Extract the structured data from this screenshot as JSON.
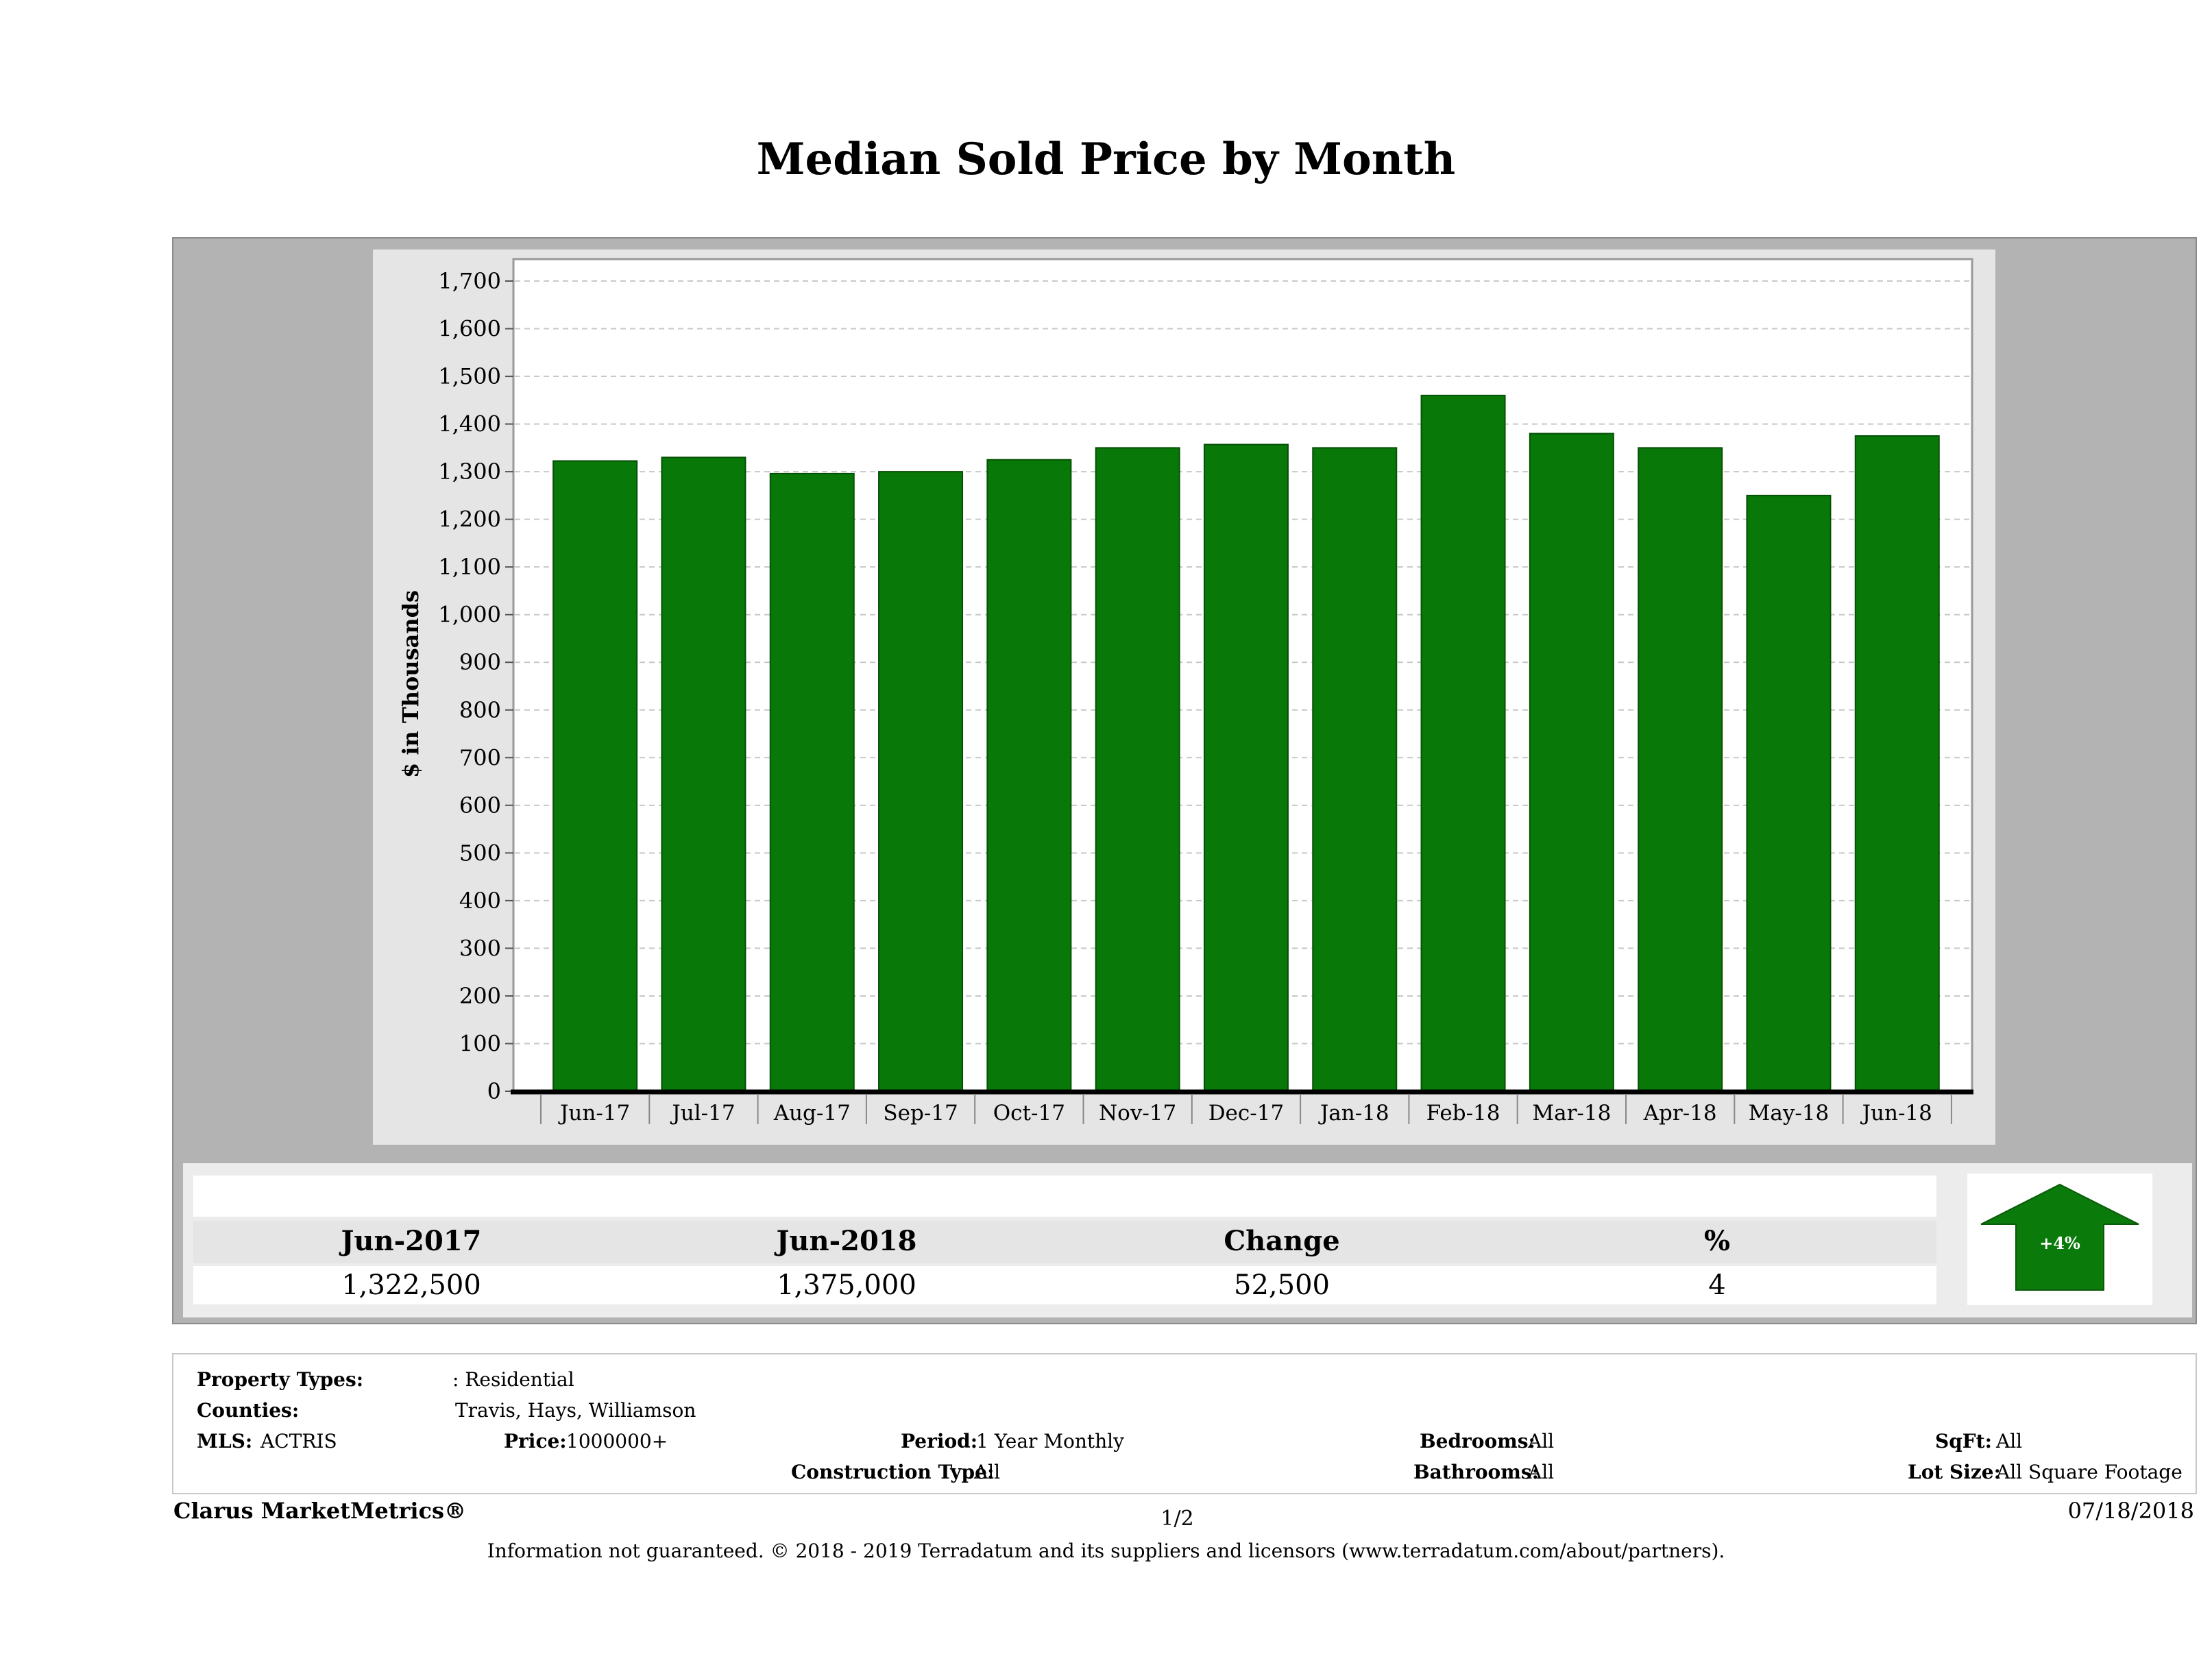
{
  "title": "Median Sold Price by Month",
  "chart_data": {
    "type": "bar",
    "title": "Median Sold Price by Month",
    "ylabel": "$ in Thousands",
    "xlabel": "",
    "categories": [
      "Jun-17",
      "Jul-17",
      "Aug-17",
      "Sep-17",
      "Oct-17",
      "Nov-17",
      "Dec-17",
      "Jan-18",
      "Feb-18",
      "Mar-18",
      "Apr-18",
      "May-18",
      "Jun-18"
    ],
    "values": [
      1322.5,
      1330,
      1296,
      1300,
      1325,
      1350,
      1357,
      1350,
      1460,
      1380,
      1350,
      1250,
      1375
    ],
    "ylim": [
      0,
      1750
    ],
    "yticks": [
      "0",
      "100",
      "200",
      "300",
      "400",
      "500",
      "600",
      "700",
      "800",
      "900",
      "1,000",
      "1,100",
      "1,200",
      "1,300",
      "1,400",
      "1,500",
      "1,600",
      "1,700"
    ],
    "grid": true,
    "bar_color": "#087808"
  },
  "summary": {
    "headers": [
      "Jun-2017",
      "Jun-2018",
      "Change",
      "%"
    ],
    "values": [
      "1,322,500",
      "1,375,000",
      "52,500",
      "4"
    ],
    "badge": "+4%",
    "badge_color": "#0a7a0a"
  },
  "details": {
    "property_types_label": "Property Types:",
    "property_types_value": ": Residential",
    "counties_label": "Counties:",
    "counties_value": "Travis, Hays, Williamson",
    "mls_label": "MLS:",
    "mls_value": "ACTRIS",
    "price_label": "Price:",
    "price_value": "1000000+",
    "period_label": "Period:",
    "period_value": "1 Year Monthly",
    "construction_label": "Construction Type:",
    "construction_value": "All",
    "bedrooms_label": "Bedrooms:",
    "bedrooms_value": "All",
    "bathrooms_label": "Bathrooms:",
    "bathrooms_value": "All",
    "sqft_label": "SqFt:",
    "sqft_value": "All",
    "lotsize_label": "Lot Size:",
    "lotsize_value": "All Square Footage"
  },
  "footer": {
    "brand": "Clarus MarketMetrics®",
    "page": "1/2",
    "date": "07/18/2018",
    "note": "Information not guaranteed. © 2018 - 2019 Terradatum and its suppliers and licensors (www.terradatum.com/about/partners)."
  }
}
